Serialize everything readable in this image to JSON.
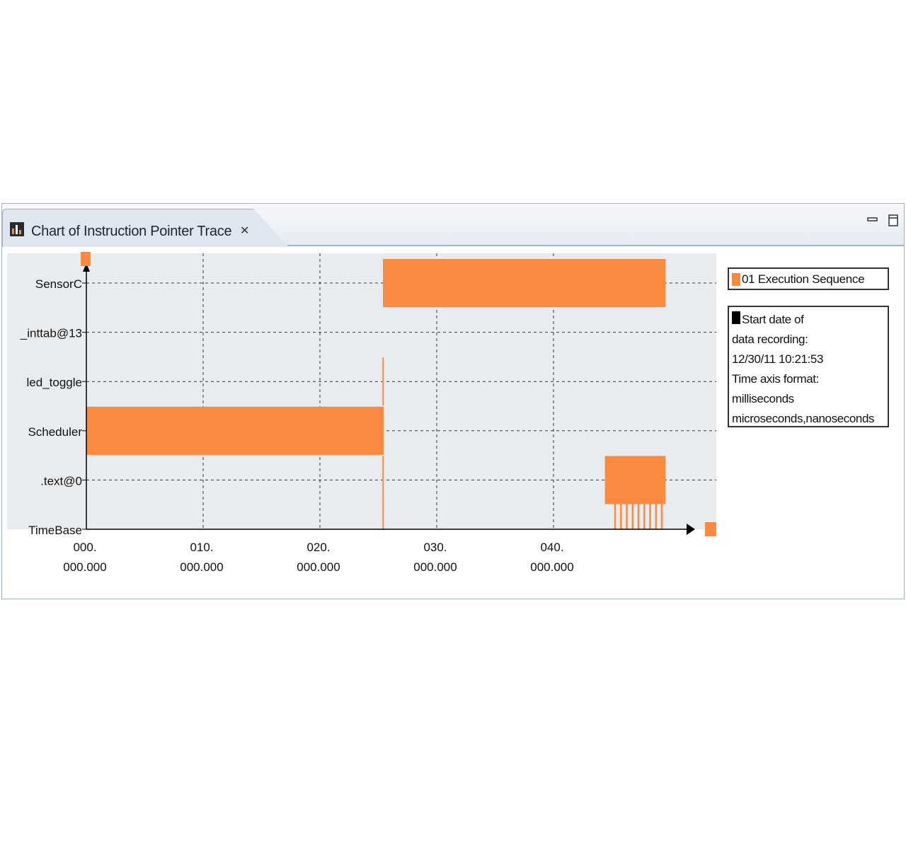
{
  "window": {
    "tab_title": "Chart of Instruction Pointer Trace",
    "close_glyph": "✕",
    "icons": [
      "chart-view-icon",
      "tab-close-icon",
      "minimize-icon",
      "maximize-icon"
    ]
  },
  "legend": {
    "series_label": "01 Execution Sequence",
    "info": {
      "line1": "Start date of",
      "line2": "data recording:",
      "line3": "12/30/11 10:21:53",
      "line4": "Time axis format:",
      "line5": "milliseconds",
      "line6": "microseconds,nanoseconds"
    }
  },
  "chart_data": {
    "type": "bar",
    "categories": [
      "SensorC",
      "_inttab@13",
      "led_toggle",
      "Scheduler",
      ".text@0",
      "TimeBase"
    ],
    "x_tick_labels": [
      {
        "line1": "000.",
        "line2": "000.000"
      },
      {
        "line1": "010.",
        "line2": "000.000"
      },
      {
        "line1": "020.",
        "line2": "000.000"
      },
      {
        "line1": "030.",
        "line2": "000.000"
      },
      {
        "line1": "040.",
        "line2": "000.000"
      }
    ],
    "xlim": [
      0,
      54
    ],
    "x_ticks": [
      0,
      10,
      20,
      30,
      40
    ],
    "grid": true,
    "legend_placement": "right",
    "colors": {
      "series": "#f98a3f",
      "plot_bg": "#e9ecef",
      "axis": "#000000",
      "grid": "#333333"
    },
    "series": [
      {
        "name": "01 Execution Sequence",
        "segments": [
          {
            "category": "Scheduler",
            "start": 0,
            "end": 25.4
          },
          {
            "category": "led_toggle",
            "start": 25.35,
            "end": 25.45
          },
          {
            "category": "Scheduler",
            "start": 25.35,
            "end": 25.45
          },
          {
            "category": ".text@0",
            "start": 25.35,
            "end": 25.45
          },
          {
            "category": "TimeBase",
            "start": 25.35,
            "end": 25.45
          },
          {
            "category": "SensorC",
            "start": 25.4,
            "end": 49.6
          },
          {
            "category": ".text@0",
            "start": 44.4,
            "end": 49.6
          },
          {
            "category": "TimeBase",
            "start": 45.2,
            "end": 45.35
          },
          {
            "category": "TimeBase",
            "start": 45.7,
            "end": 45.85
          },
          {
            "category": "TimeBase",
            "start": 46.2,
            "end": 46.35
          },
          {
            "category": "TimeBase",
            "start": 46.7,
            "end": 46.85
          },
          {
            "category": "TimeBase",
            "start": 47.2,
            "end": 47.35
          },
          {
            "category": "TimeBase",
            "start": 47.7,
            "end": 47.85
          },
          {
            "category": "TimeBase",
            "start": 48.2,
            "end": 48.35
          },
          {
            "category": "TimeBase",
            "start": 48.7,
            "end": 48.85
          },
          {
            "category": "TimeBase",
            "start": 49.2,
            "end": 49.35
          }
        ]
      }
    ]
  }
}
